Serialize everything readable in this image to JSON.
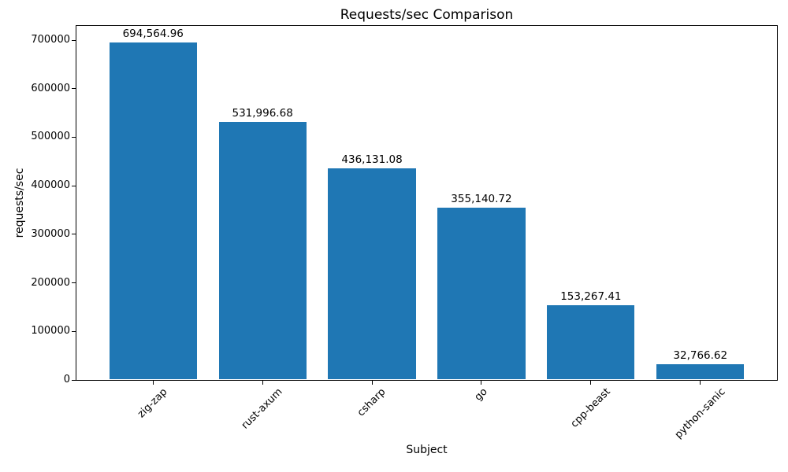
{
  "chart_data": {
    "type": "bar",
    "title": "Requests/sec Comparison",
    "xlabel": "Subject",
    "ylabel": "requests/sec",
    "categories": [
      "zig-zap",
      "rust-axum",
      "csharp",
      "go",
      "cpp-beast",
      "python-sanic"
    ],
    "values": [
      694564.96,
      531996.68,
      436131.08,
      355140.72,
      153267.41,
      32766.62
    ],
    "bar_labels": [
      "694,564.96",
      "531,996.68",
      "436,131.08",
      "355,140.72",
      "153,267.41",
      "32,766.62"
    ],
    "yticks": [
      0,
      100000,
      200000,
      300000,
      400000,
      500000,
      600000,
      700000
    ],
    "ytick_labels": [
      "0",
      "100000",
      "200000",
      "300000",
      "400000",
      "500000",
      "600000",
      "700000"
    ],
    "ylim": [
      0,
      729293
    ],
    "xlim": [
      -0.7,
      5.7
    ],
    "bar_width_units": 0.8,
    "x_tick_rotation_deg": 45,
    "grid": false,
    "legend": null,
    "colors": {
      "bar": "#1f77b4",
      "spine": "#000000",
      "text": "#000000",
      "background": "#ffffff"
    }
  }
}
